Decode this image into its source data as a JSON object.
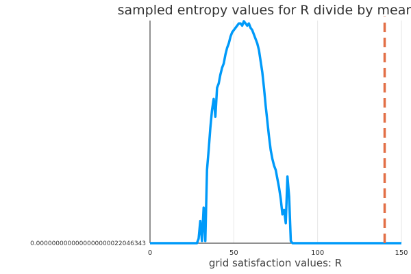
{
  "chart_data": {
    "type": "line",
    "title": "sampled entropy values for R divide by mean",
    "xlabel": "grid satisfaction values: R",
    "ylabel": "",
    "xlim": [
      0,
      150
    ],
    "xticks": [
      "0",
      "50",
      "100",
      "150"
    ],
    "xtick_values": [
      0,
      50,
      100,
      150
    ],
    "ylim": [
      0,
      1
    ],
    "yticks": [
      "0.0000000000000000000022046343"
    ],
    "ytick_values": [
      0
    ],
    "grid": true,
    "legend": "none",
    "series": [
      {
        "color": "#009AF9",
        "style": "solid",
        "x": [
          0,
          10,
          20,
          28,
          29,
          30,
          31,
          32,
          33,
          34,
          35,
          36,
          37,
          38,
          39,
          40,
          41,
          42,
          43,
          44,
          45,
          46,
          47,
          48,
          49,
          50,
          51,
          52,
          53,
          54,
          55,
          56,
          57,
          58,
          59,
          60,
          61,
          62,
          63,
          64,
          65,
          66,
          67,
          68,
          69,
          70,
          71,
          72,
          73,
          74,
          75,
          76,
          77,
          78,
          79,
          80,
          81,
          82,
          83,
          84,
          85,
          90,
          100,
          110,
          120,
          130,
          140,
          150
        ],
        "y": [
          0,
          0,
          0,
          0,
          0.02,
          0.1,
          0.01,
          0.16,
          0.01,
          0.33,
          0.42,
          0.52,
          0.6,
          0.65,
          0.57,
          0.7,
          0.72,
          0.76,
          0.79,
          0.81,
          0.85,
          0.88,
          0.9,
          0.93,
          0.95,
          0.96,
          0.97,
          0.98,
          0.99,
          0.99,
          0.98,
          1.0,
          0.99,
          0.98,
          0.99,
          0.97,
          0.96,
          0.94,
          0.92,
          0.9,
          0.87,
          0.82,
          0.77,
          0.7,
          0.62,
          0.55,
          0.48,
          0.42,
          0.38,
          0.35,
          0.33,
          0.29,
          0.25,
          0.2,
          0.13,
          0.15,
          0.09,
          0.3,
          0.21,
          0.01,
          0,
          0,
          0,
          0,
          0,
          0,
          0,
          0
        ]
      },
      {
        "color": "#E26F46",
        "style": "dashed",
        "x": [
          140,
          140
        ],
        "y": [
          0,
          1.02
        ]
      }
    ]
  }
}
